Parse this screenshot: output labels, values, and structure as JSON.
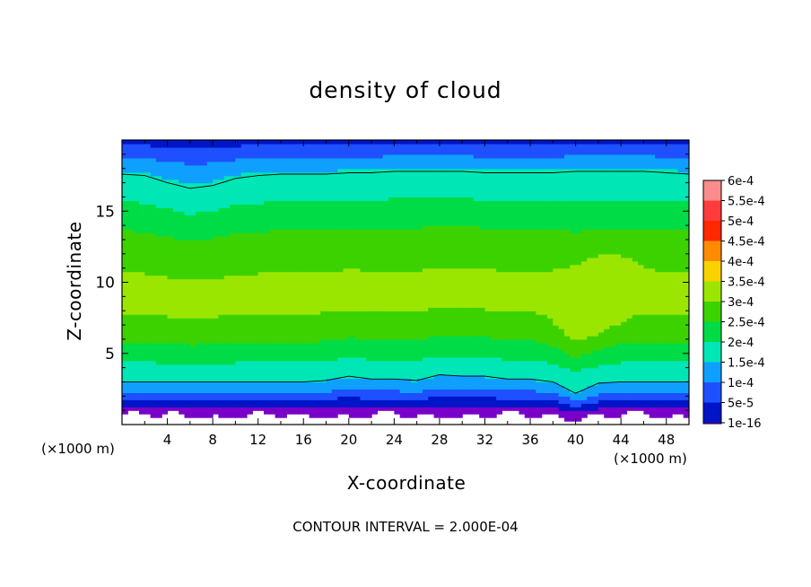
{
  "chart_data": {
    "type": "heatmap",
    "title": "density of cloud",
    "xlabel": "X-coordinate",
    "ylabel": "Z-coordinate",
    "x_unit_left": "(×1000 m)",
    "x_unit_right": "(×1000 m)",
    "footer": "CONTOUR INTERVAL = 2.000E-04",
    "xlim": [
      0,
      50
    ],
    "ylim": [
      0,
      20
    ],
    "x_ticks": [
      "4",
      "8",
      "12",
      "16",
      "20",
      "24",
      "28",
      "32",
      "36",
      "40",
      "44",
      "48"
    ],
    "x_tick_values": [
      4,
      8,
      12,
      16,
      20,
      24,
      28,
      32,
      36,
      40,
      44,
      48
    ],
    "y_ticks": [
      "5",
      "10",
      "15"
    ],
    "y_tick_values": [
      5,
      10,
      15
    ],
    "colorbar": {
      "labels": [
        "6e-4",
        "5.5e-4",
        "5e-4",
        "4.5e-4",
        "4e-4",
        "3.5e-4",
        "3e-4",
        "2.5e-4",
        "2e-4",
        "1.5e-4",
        "1e-4",
        "5e-5",
        "1e-16"
      ],
      "colors": [
        "#fa8c8c",
        "#ff3c3c",
        "#ff2800",
        "#ff8c00",
        "#fad200",
        "#9be600",
        "#3cd200",
        "#00dc46",
        "#00e6b4",
        "#0fa0ff",
        "#1e50ff",
        "#0014c8",
        "#7800c8"
      ]
    },
    "fields": {
      "column_x": [
        0,
        2,
        4,
        6,
        8,
        10,
        12,
        14,
        16,
        18,
        20,
        22,
        24,
        26,
        28,
        30,
        32,
        34,
        36,
        38,
        40,
        42,
        44,
        46,
        48,
        50
      ],
      "profile_z": [
        0,
        0.5,
        1,
        1.5,
        2,
        2.5,
        3,
        3.5,
        4,
        5,
        6,
        7,
        8,
        9,
        10,
        11,
        12,
        13,
        14,
        15,
        16,
        16.5,
        17,
        17.5,
        18,
        18.5,
        19,
        19.5,
        20
      ],
      "profile_values": [
        0,
        0,
        2e-05,
        6e-05,
        0.0001,
        0.00014,
        0.00018,
        0.0002,
        0.00022,
        0.00026,
        0.0003,
        0.00033,
        0.000355,
        0.00036,
        0.000355,
        0.00034,
        0.00032,
        0.0003,
        0.00027,
        0.000245,
        0.000225,
        0.00021,
        0.000195,
        0.00018,
        0.00016,
        0.00014,
        0.00012,
        0.0001,
        7e-05
      ],
      "contour_low_z": [
        3.0,
        3.0,
        3.0,
        3.0,
        3.0,
        3.0,
        3.0,
        3.0,
        3.0,
        3.1,
        3.4,
        3.2,
        3.2,
        3.1,
        3.5,
        3.4,
        3.4,
        3.2,
        3.2,
        3.0,
        2.2,
        2.9,
        3.0,
        3.0,
        3.0,
        3.0
      ],
      "contour_high_z": [
        17.6,
        17.5,
        17.0,
        16.6,
        16.8,
        17.3,
        17.5,
        17.6,
        17.6,
        17.6,
        17.7,
        17.7,
        17.8,
        17.8,
        17.8,
        17.8,
        17.7,
        17.7,
        17.7,
        17.7,
        17.8,
        17.8,
        17.8,
        17.8,
        17.7,
        17.6
      ],
      "plume_center_x": 40,
      "plume_peak_value": 0.00039
    }
  }
}
